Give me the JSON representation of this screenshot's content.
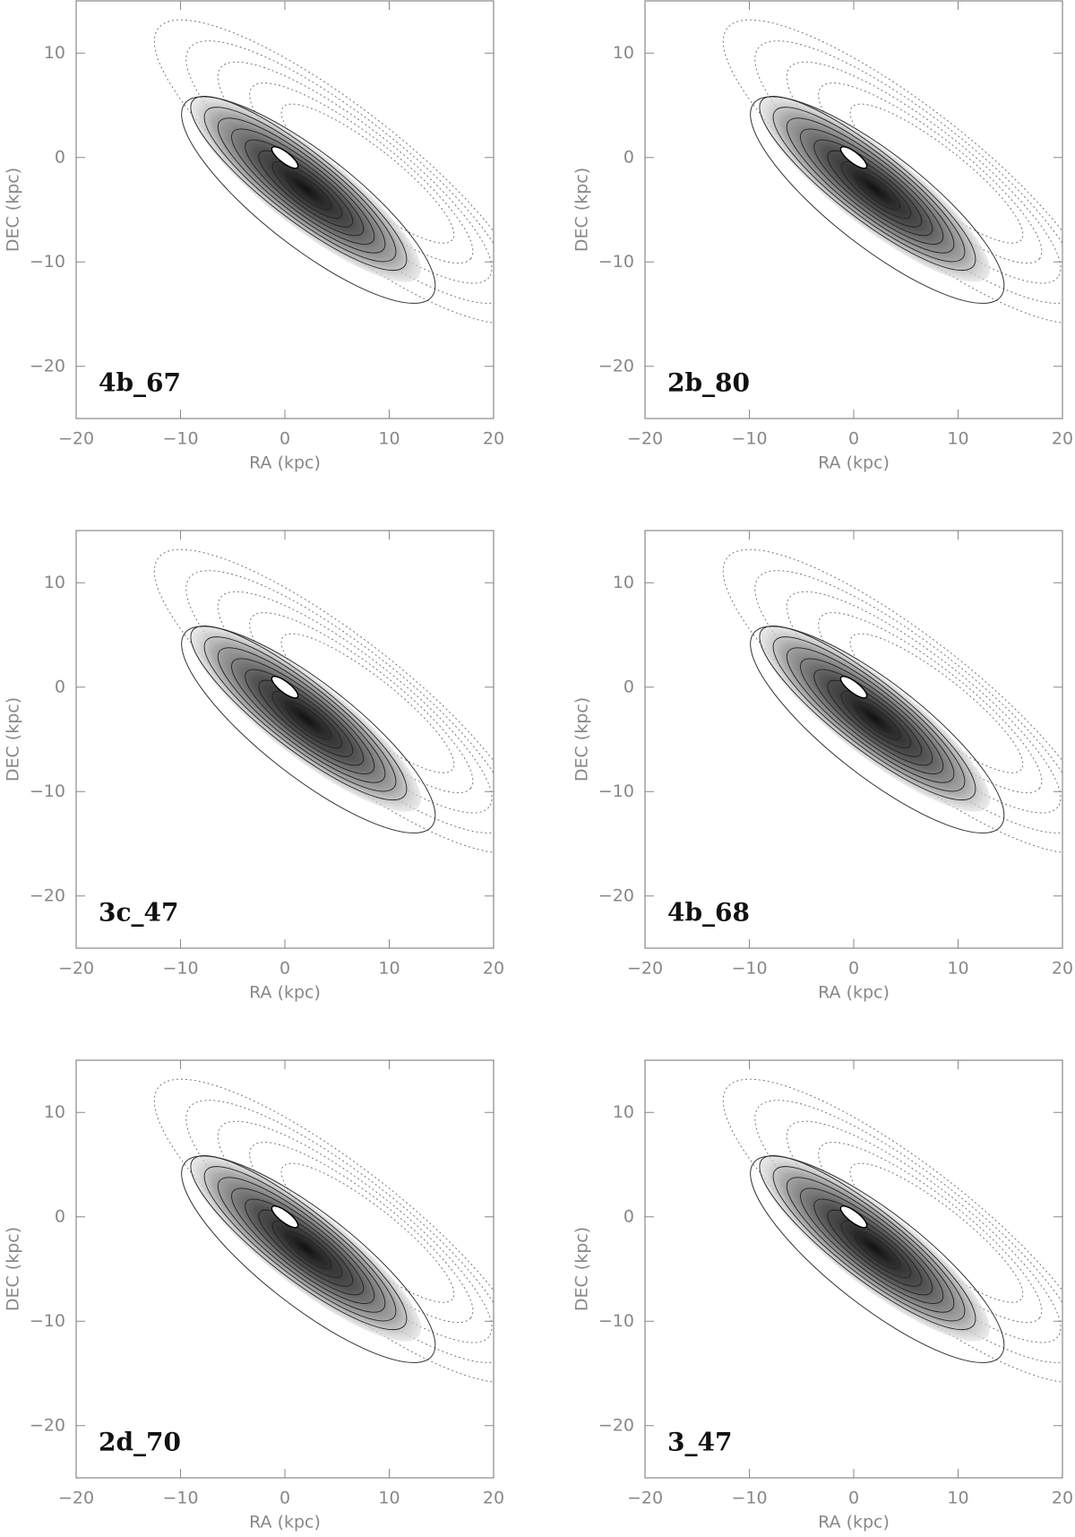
{
  "chart_data": [
    {
      "type": "contour",
      "label": "4b_67",
      "xlabel": "RA (kpc)",
      "ylabel": "DEC (kpc)",
      "xlim": [
        -20,
        20
      ],
      "ylim": [
        -25,
        15
      ],
      "xticks": [
        {
          "value": -20,
          "label": "−20"
        },
        {
          "value": -10,
          "label": "−10"
        },
        0,
        10,
        20
      ],
      "yticks": [
        {
          "value": -20,
          "label": "−20"
        },
        {
          "value": -10,
          "label": "−10"
        },
        0,
        10
      ]
    },
    {
      "type": "contour",
      "label": "2b_80",
      "xlabel": "RA (kpc)",
      "ylabel": "DEC (kpc)",
      "xlim": [
        -20,
        20
      ],
      "ylim": [
        -25,
        15
      ],
      "xticks": [
        {
          "value": -20,
          "label": "−20"
        },
        {
          "value": -10,
          "label": "−10"
        },
        0,
        10,
        20
      ],
      "yticks": [
        {
          "value": -20,
          "label": "−20"
        },
        {
          "value": -10,
          "label": "−10"
        },
        0,
        10
      ]
    },
    {
      "type": "contour",
      "label": "3c_47",
      "xlabel": "RA (kpc)",
      "ylabel": "DEC (kpc)",
      "xlim": [
        -20,
        20
      ],
      "ylim": [
        -25,
        15
      ],
      "xticks": [
        {
          "value": -20,
          "label": "−20"
        },
        {
          "value": -10,
          "label": "−10"
        },
        0,
        10,
        20
      ],
      "yticks": [
        {
          "value": -20,
          "label": "−20"
        },
        {
          "value": -10,
          "label": "−10"
        },
        0,
        10
      ]
    },
    {
      "type": "contour",
      "label": "4b_68",
      "xlabel": "RA (kpc)",
      "ylabel": "DEC (kpc)",
      "xlim": [
        -20,
        20
      ],
      "ylim": [
        -25,
        15
      ],
      "xticks": [
        {
          "value": -20,
          "label": "−20"
        },
        {
          "value": -10,
          "label": "−10"
        },
        0,
        10,
        20
      ],
      "yticks": [
        {
          "value": -20,
          "label": "−20"
        },
        {
          "value": -10,
          "label": "−10"
        },
        0,
        10
      ]
    },
    {
      "type": "contour",
      "label": "2d_70",
      "xlabel": "RA (kpc)",
      "ylabel": "DEC (kpc)",
      "xlim": [
        -20,
        20
      ],
      "ylim": [
        -25,
        15
      ],
      "xticks": [
        {
          "value": -20,
          "label": "−20"
        },
        {
          "value": -10,
          "label": "−10"
        },
        0,
        10,
        20
      ],
      "yticks": [
        {
          "value": -20,
          "label": "−20"
        },
        {
          "value": -10,
          "label": "−10"
        },
        0,
        10
      ]
    },
    {
      "type": "contour",
      "label": "3_47",
      "xlabel": "RA (kpc)",
      "ylabel": "DEC (kpc)",
      "xlim": [
        -20,
        20
      ],
      "ylim": [
        -25,
        15
      ],
      "xticks": [
        {
          "value": -20,
          "label": "−20"
        },
        {
          "value": -10,
          "label": "−10"
        },
        0,
        10,
        20
      ],
      "yticks": [
        {
          "value": -20,
          "label": "−20"
        },
        {
          "value": -10,
          "label": "−10"
        },
        0,
        10
      ]
    }
  ]
}
